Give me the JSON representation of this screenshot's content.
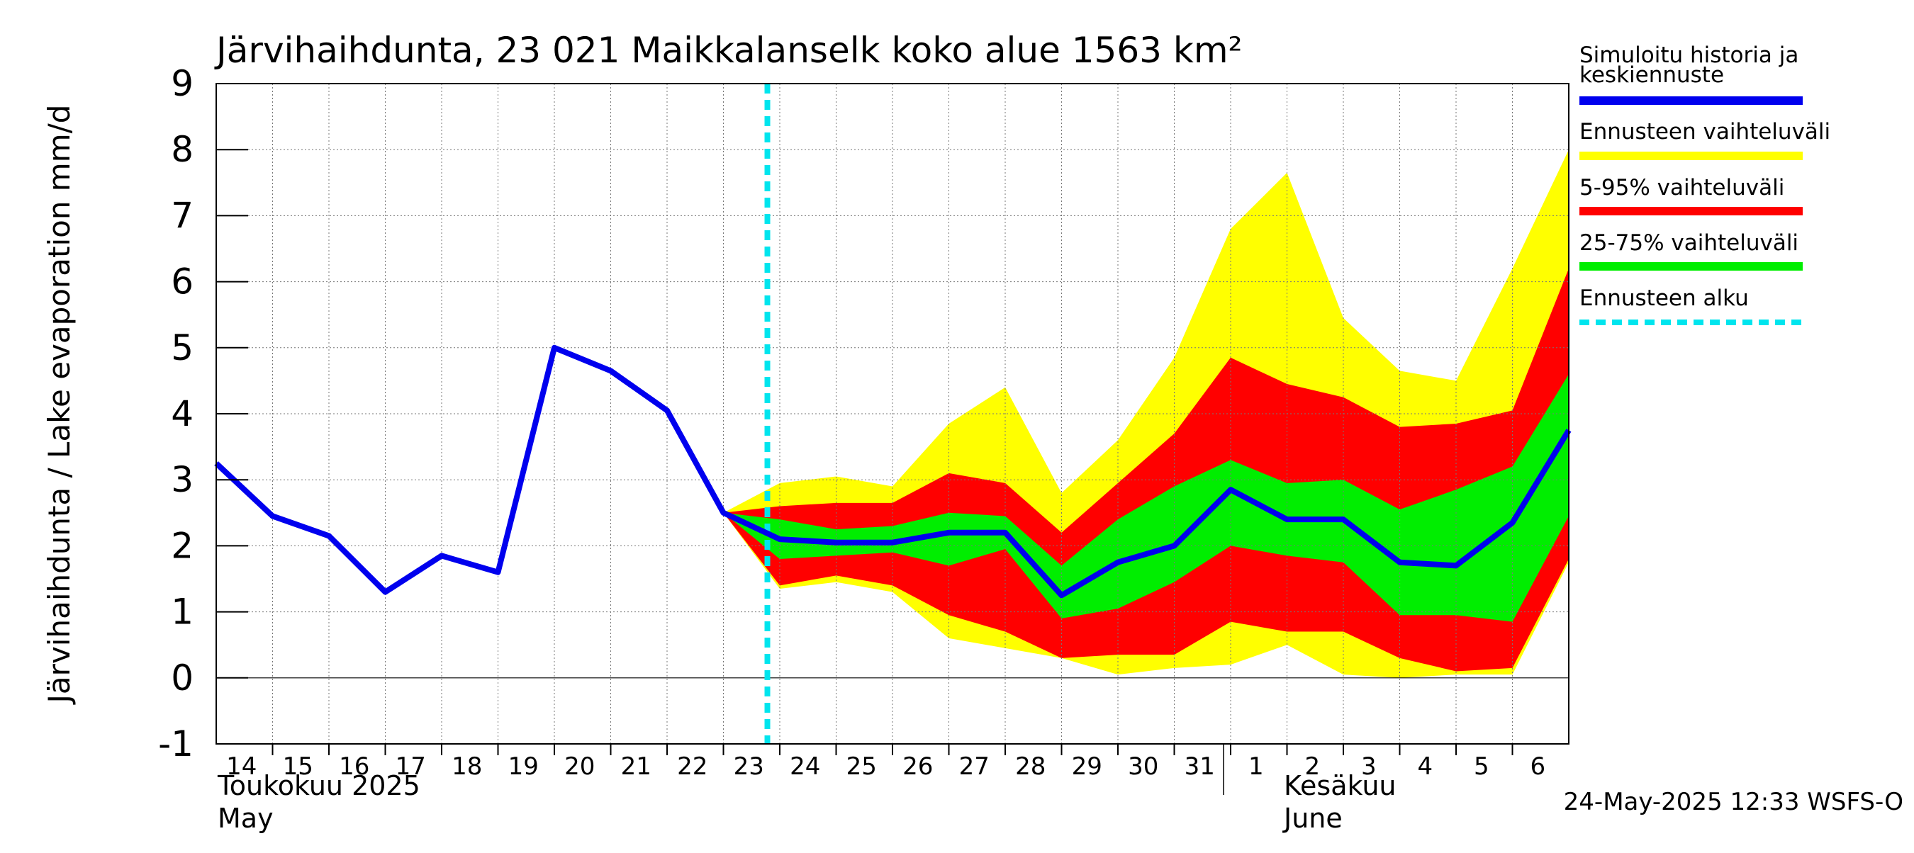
{
  "chart_data": {
    "type": "area",
    "title": "Järvihaihdunta, 23 021 Maikkalanselk koko alue 1563 km²",
    "ylabel": "Järvihaihdunta / Lake evaporation   mm/d",
    "ylim": [
      -1,
      9
    ],
    "yticks": [
      -1,
      0,
      1,
      2,
      3,
      4,
      5,
      6,
      7,
      8,
      9
    ],
    "grid": true,
    "x_day_labels": [
      "14",
      "15",
      "16",
      "17",
      "18",
      "19",
      "20",
      "21",
      "22",
      "23",
      "24",
      "25",
      "26",
      "27",
      "28",
      "29",
      "30",
      "31",
      "1",
      "2",
      "3",
      "4",
      "5",
      "6"
    ],
    "month_labels": [
      {
        "line1": "Toukokuu  2025",
        "line2": "May"
      },
      {
        "line1": "Kesäkuu",
        "line2": "June"
      }
    ],
    "forecast_start": "24",
    "forecast_x": [
      "23",
      "24",
      "25",
      "26",
      "27",
      "28",
      "29",
      "30",
      "31",
      "1",
      "2",
      "3",
      "4",
      "5",
      "6",
      "7"
    ],
    "series": [
      {
        "name": "Ennusteen vaihteluväli",
        "color": "#ffff00",
        "upper": [
          2.5,
          2.95,
          3.05,
          2.9,
          3.85,
          4.4,
          2.8,
          3.6,
          4.85,
          6.8,
          7.65,
          5.45,
          4.65,
          4.5,
          6.2,
          8.0
        ],
        "lower": [
          2.5,
          1.35,
          1.45,
          1.3,
          0.6,
          0.45,
          0.3,
          0.05,
          0.15,
          0.2,
          0.5,
          0.05,
          0.0,
          0.05,
          0.05,
          1.75
        ]
      },
      {
        "name": "5-95% vaihteluväli",
        "color": "#ff0000",
        "upper": [
          2.5,
          2.6,
          2.65,
          2.65,
          3.1,
          2.95,
          2.2,
          2.95,
          3.7,
          4.85,
          4.45,
          4.25,
          3.8,
          3.85,
          4.05,
          6.2
        ],
        "lower": [
          2.5,
          1.4,
          1.55,
          1.4,
          0.95,
          0.7,
          0.3,
          0.35,
          0.35,
          0.85,
          0.7,
          0.7,
          0.3,
          0.1,
          0.15,
          1.8
        ]
      },
      {
        "name": "25-75% vaihteluväli",
        "color": "#00ee00",
        "upper": [
          2.5,
          2.4,
          2.25,
          2.3,
          2.5,
          2.45,
          1.7,
          2.4,
          2.9,
          3.3,
          2.95,
          3.0,
          2.55,
          2.85,
          3.2,
          4.6
        ],
        "lower": [
          2.5,
          1.8,
          1.85,
          1.9,
          1.7,
          1.95,
          0.9,
          1.05,
          1.45,
          2.0,
          1.85,
          1.75,
          0.95,
          0.95,
          0.85,
          2.45
        ]
      }
    ],
    "line_series": {
      "name": "Simuloitu historia ja keskiennuste",
      "color": "#0000ee",
      "x": [
        "14",
        "15",
        "16",
        "17",
        "18",
        "19",
        "20",
        "21",
        "22",
        "23",
        "24",
        "25",
        "26",
        "27",
        "28",
        "29",
        "30",
        "31",
        "1",
        "2",
        "3",
        "4",
        "5",
        "6",
        "7"
      ],
      "values": [
        3.25,
        2.45,
        2.15,
        1.3,
        1.85,
        1.6,
        5.0,
        4.65,
        4.05,
        2.5,
        2.1,
        2.05,
        2.05,
        2.2,
        2.2,
        1.25,
        1.75,
        2.0,
        2.85,
        2.4,
        2.4,
        1.75,
        1.7,
        2.35,
        3.75
      ]
    },
    "legend": {
      "placement": "right",
      "items": [
        {
          "label_lines": [
            "Simuloitu historia ja",
            "keskiennuste"
          ],
          "color": "#0000ee",
          "style": "solid"
        },
        {
          "label_lines": [
            "Ennusteen vaihteluväli"
          ],
          "color": "#ffff00",
          "style": "solid"
        },
        {
          "label_lines": [
            "5-95% vaihteluväli"
          ],
          "color": "#ff0000",
          "style": "solid"
        },
        {
          "label_lines": [
            "25-75% vaihteluväli"
          ],
          "color": "#00ee00",
          "style": "solid"
        },
        {
          "label_lines": [
            "Ennusteen alku"
          ],
          "color": "#00e5ee",
          "style": "dashed"
        }
      ]
    },
    "footer": "24-May-2025 12:33 WSFS-O"
  }
}
